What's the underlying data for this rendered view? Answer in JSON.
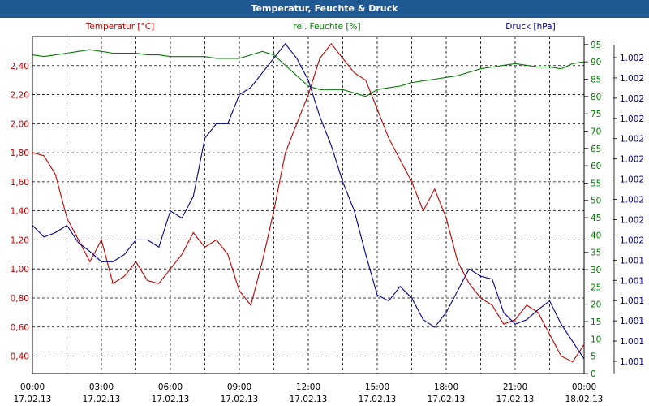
{
  "title": "Temperatur, Feuchte & Druck",
  "colors": {
    "temperature": "#c00000",
    "humidity": "#007a00",
    "pressure": "#00008b",
    "titlebar": "#1f5a94"
  },
  "chart_data": {
    "type": "line",
    "title": "Temperatur, Feuchte & Druck",
    "grid": true,
    "x_hours": [
      0,
      0.5,
      1,
      1.5,
      2,
      2.5,
      3,
      3.5,
      4,
      4.5,
      5,
      5.5,
      6,
      6.5,
      7,
      7.5,
      8,
      8.5,
      9,
      9.5,
      10,
      10.5,
      11,
      11.5,
      12,
      12.5,
      13,
      13.5,
      14,
      14.5,
      15,
      15.5,
      16,
      16.5,
      17,
      17.5,
      18,
      18.5,
      19,
      19.5,
      20,
      20.5,
      21,
      21.5,
      22,
      22.5,
      23,
      23.5,
      24
    ],
    "x_ticks": [
      {
        "time": "00:00",
        "date": "17.02.13"
      },
      {
        "time": "03:00",
        "date": "17.02.13"
      },
      {
        "time": "06:00",
        "date": "17.02.13"
      },
      {
        "time": "09:00",
        "date": "17.02.13"
      },
      {
        "time": "12:00",
        "date": "17.02.13"
      },
      {
        "time": "15:00",
        "date": "17.02.13"
      },
      {
        "time": "18:00",
        "date": "17.02.13"
      },
      {
        "time": "21:00",
        "date": "17.02.13"
      },
      {
        "time": "00:00",
        "date": "18.02.13"
      }
    ],
    "axes": {
      "left": {
        "unit": "°C",
        "ylim": [
          0.28,
          2.6
        ],
        "ticks": [
          "0,40",
          "0,60",
          "0,80",
          "1,00",
          "1,20",
          "1,40",
          "1,60",
          "1,80",
          "2,00",
          "2,20",
          "2,40"
        ]
      },
      "right1": {
        "unit": "%",
        "ylim": [
          0,
          97.3
        ],
        "ticks": [
          "0",
          "5",
          "10",
          "15",
          "20",
          "25",
          "30",
          "35",
          "40",
          "45",
          "50",
          "55",
          "60",
          "65",
          "70",
          "75",
          "80",
          "85",
          "90",
          "95"
        ]
      },
      "right2": {
        "unit": "hPa",
        "ticks": [
          "1.001",
          "1.001",
          "1.001",
          "1.001",
          "1.001",
          "1.001",
          "1.002",
          "1.002",
          "1.002",
          "1.002",
          "1.002",
          "1.002",
          "1.002",
          "1.002",
          "1.002",
          "1.002"
        ]
      }
    },
    "series": [
      {
        "name": "Temperatur [°C]",
        "axis": "left",
        "color": "#c00000",
        "values": [
          1.8,
          1.78,
          1.65,
          1.35,
          1.2,
          1.05,
          1.2,
          0.9,
          0.95,
          1.05,
          0.92,
          0.9,
          1.0,
          1.1,
          1.25,
          1.15,
          1.2,
          1.1,
          0.85,
          0.75,
          1.05,
          1.4,
          1.8,
          2.0,
          2.2,
          2.45,
          2.55,
          2.45,
          2.35,
          2.3,
          2.1,
          1.9,
          1.75,
          1.6,
          1.4,
          1.55,
          1.35,
          1.05,
          0.9,
          0.8,
          0.75,
          0.62,
          0.65,
          0.75,
          0.7,
          0.55,
          0.4,
          0.36,
          0.48
        ]
      },
      {
        "name": "rel. Feuchte [%]",
        "axis": "right1",
        "color": "#007a00",
        "values": [
          92,
          91.5,
          92,
          92.5,
          93,
          93.5,
          93,
          92.5,
          92.5,
          92.5,
          92,
          92,
          91.5,
          91.5,
          91.5,
          91.5,
          91,
          91,
          91,
          92,
          93,
          92,
          89,
          86,
          83,
          82,
          82,
          82,
          81,
          80,
          82,
          82.5,
          83,
          84,
          84.5,
          85,
          85.5,
          86,
          87,
          88,
          88.5,
          89,
          89.5,
          89,
          88.5,
          88.5,
          88,
          89.5,
          90
        ]
      },
      {
        "name": "Druck [hPa]",
        "axis": "left",
        "color": "#00008b",
        "values": [
          1.3,
          1.22,
          1.25,
          1.3,
          1.18,
          1.12,
          1.05,
          1.05,
          1.1,
          1.2,
          1.2,
          1.15,
          1.4,
          1.35,
          1.5,
          1.9,
          2.0,
          2.0,
          2.2,
          2.25,
          2.35,
          2.45,
          2.55,
          2.45,
          2.3,
          2.05,
          1.85,
          1.6,
          1.4,
          1.1,
          0.82,
          0.78,
          0.88,
          0.8,
          0.65,
          0.6,
          0.7,
          0.85,
          1.0,
          0.95,
          0.93,
          0.7,
          0.62,
          0.65,
          0.72,
          0.78,
          0.62,
          0.5,
          0.38
        ]
      }
    ]
  }
}
